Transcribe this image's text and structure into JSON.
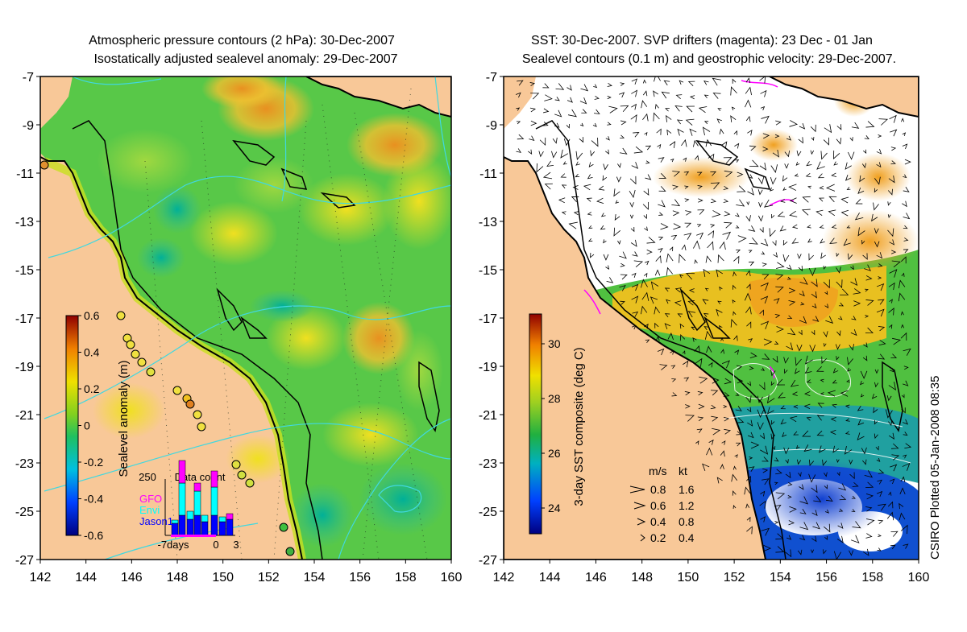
{
  "left_panel": {
    "title_line1": "Atmospheric pressure contours (2 hPa): 30-Dec-2007",
    "title_line2": "Isostatically adjusted sealevel anomaly: 29-Dec-2007",
    "colorbar_label": "Sealevel anomaly (m)",
    "colorbar_ticks": [
      "0.6",
      "0.4",
      "0.2",
      "0",
      "-0.2",
      "-0.4",
      "-0.6"
    ],
    "inset": {
      "title": "Data count",
      "y_tick": "250",
      "x_ticks": [
        "-7days",
        "0",
        "3"
      ],
      "legend": [
        {
          "label": "GFO",
          "color": "#ff00ff"
        },
        {
          "label": "Envi",
          "color": "#00ffff"
        },
        {
          "label": "Jason1",
          "color": "#0000ff"
        }
      ]
    }
  },
  "right_panel": {
    "title_line1": "SST: 30-Dec-2007. SVP drifters (magenta): 23 Dec - 01 Jan",
    "title_line2": "Sealevel contours (0.1 m) and geostrophic velocity: 29-Dec-2007.",
    "colorbar_label": "3-day SST composite (deg C)",
    "colorbar_ticks": [
      "30",
      "28",
      "26",
      "24"
    ],
    "velocity_legend": {
      "header_ms": "m/s",
      "header_kt": "kt",
      "rows": [
        {
          "ms": "0.8",
          "kt": "1.6"
        },
        {
          "ms": "0.6",
          "kt": "1.2"
        },
        {
          "ms": "0.4",
          "kt": "0.8"
        },
        {
          "ms": "0.2",
          "kt": "0.4"
        }
      ]
    }
  },
  "y_axis_ticks": [
    "-7",
    "-9",
    "-11",
    "-13",
    "-15",
    "-17",
    "-19",
    "-21",
    "-23",
    "-25",
    "-27"
  ],
  "x_axis_ticks": [
    "142",
    "144",
    "146",
    "148",
    "150",
    "152",
    "154",
    "156",
    "158",
    "160"
  ],
  "credit": "CSIRO Plotted 05-Jan-2008 08:35",
  "colors": {
    "land": "#f8c898",
    "coast": "#000000",
    "contour": "#40d8e0"
  }
}
